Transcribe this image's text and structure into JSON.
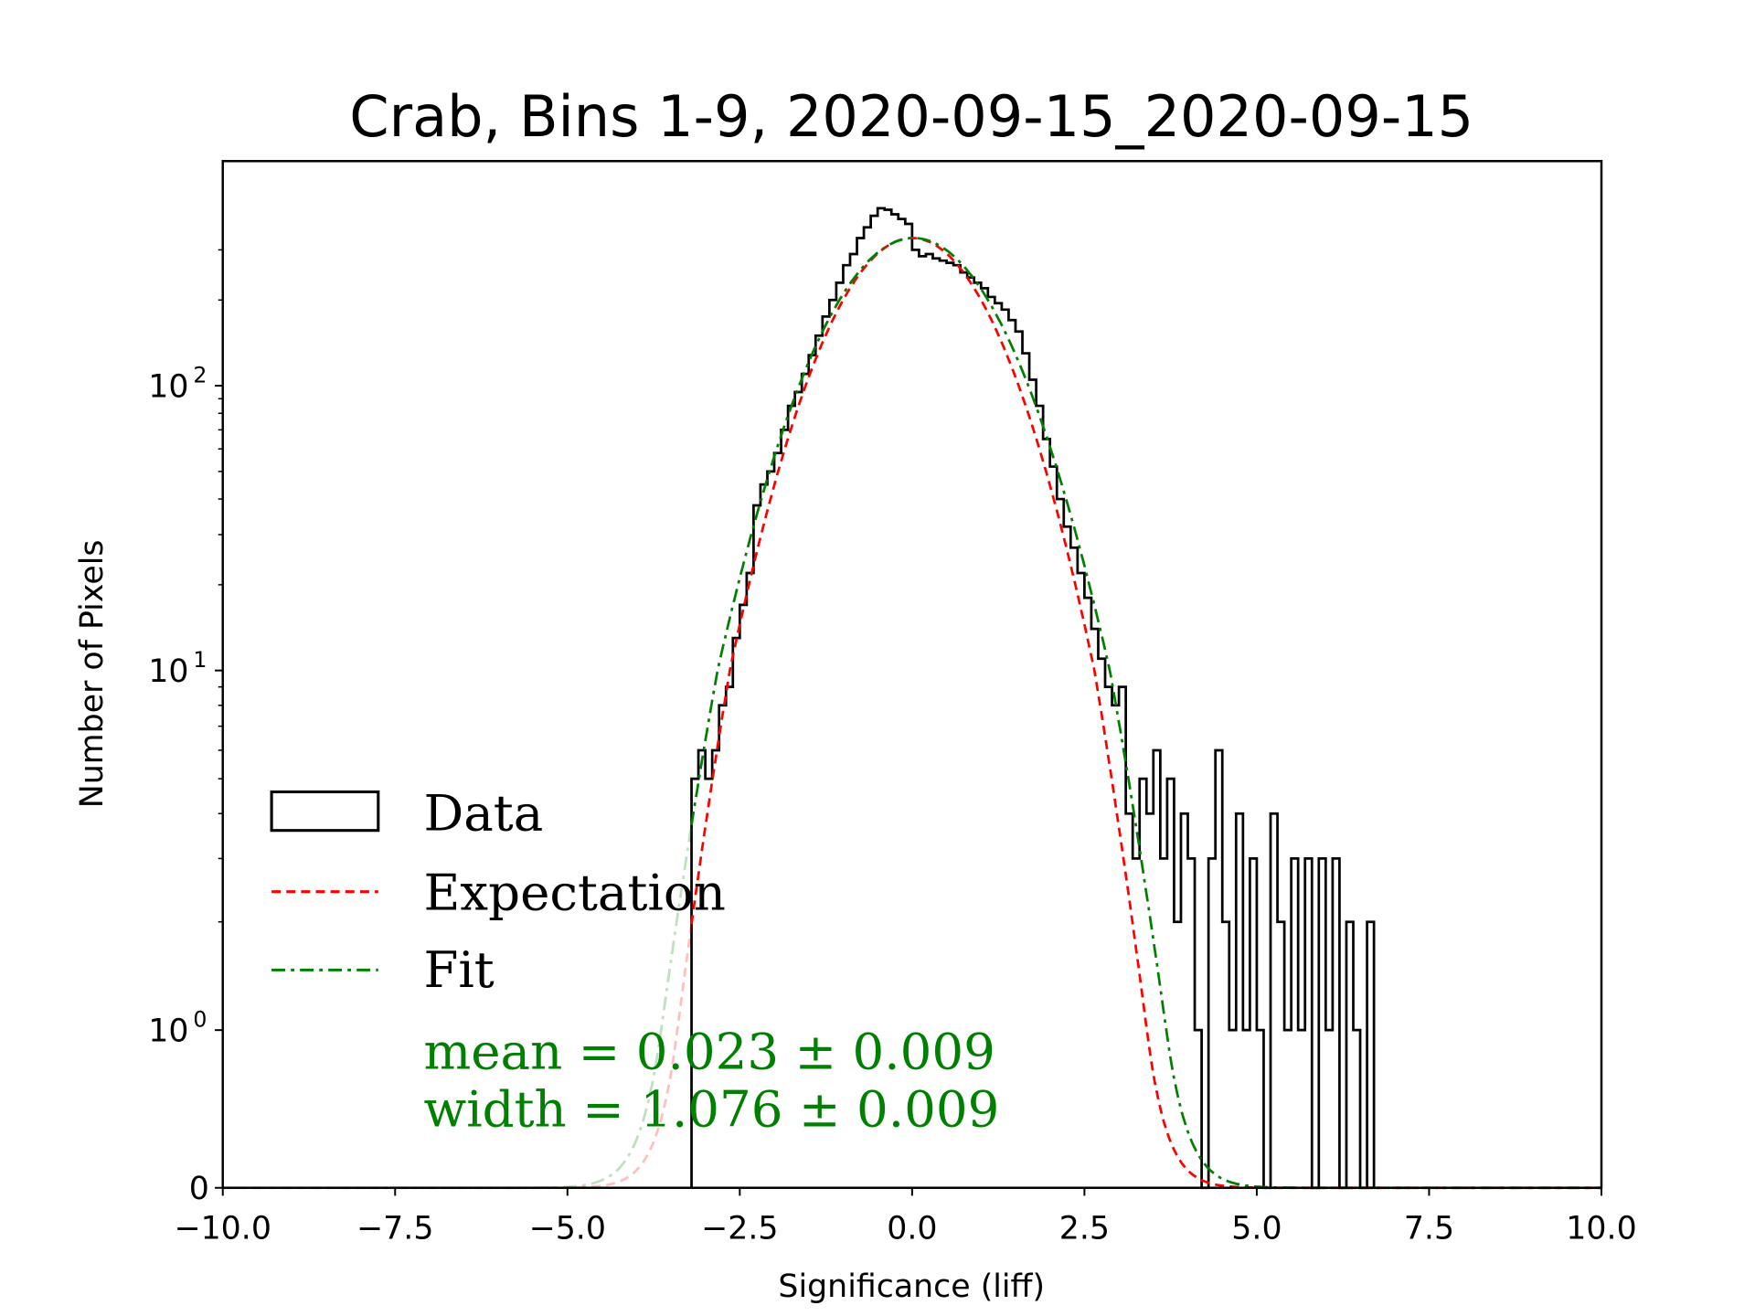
{
  "chart_data": {
    "type": "histogram",
    "title": "Crab, Bins 1-9, 2020-09-15_2020-09-15",
    "xlabel": "Significance (liff)",
    "ylabel": "Number of Pixels",
    "xlim": [
      -10,
      10
    ],
    "yscale": "symlog",
    "yticks": [
      {
        "value": 0,
        "label": "0",
        "sup": ""
      },
      {
        "value": 1,
        "label": "10",
        "sup": "0"
      },
      {
        "value": 10,
        "label": "10",
        "sup": "1"
      },
      {
        "value": 100,
        "label": "10",
        "sup": "2"
      }
    ],
    "xticks": [
      {
        "value": -10,
        "label": "−10.0"
      },
      {
        "value": -7.5,
        "label": "−7.5"
      },
      {
        "value": -5,
        "label": "−5.0"
      },
      {
        "value": -2.5,
        "label": "−2.5"
      },
      {
        "value": 0,
        "label": "0.0"
      },
      {
        "value": 2.5,
        "label": "2.5"
      },
      {
        "value": 5,
        "label": "5.0"
      },
      {
        "value": 7.5,
        "label": "7.5"
      },
      {
        "value": 10,
        "label": "10.0"
      }
    ],
    "histogram": {
      "bin_start": -3.2,
      "bin_width": 0.1,
      "counts": [
        5,
        6,
        5,
        6,
        8,
        9,
        13,
        17,
        22,
        38,
        45,
        50,
        58,
        70,
        85,
        95,
        110,
        128,
        150,
        175,
        200,
        230,
        265,
        290,
        330,
        360,
        395,
        420,
        415,
        400,
        385,
        370,
        300,
        285,
        290,
        280,
        275,
        270,
        265,
        250,
        240,
        230,
        220,
        205,
        195,
        185,
        170,
        155,
        130,
        105,
        85,
        65,
        52,
        40,
        32,
        27,
        22,
        18,
        14,
        11,
        9,
        8,
        9,
        4,
        3,
        5,
        4,
        6,
        3,
        5,
        2,
        4,
        3,
        1,
        0,
        3,
        6,
        2,
        1,
        4,
        1,
        3,
        1,
        0,
        4,
        2,
        1,
        3,
        1,
        3,
        0,
        3,
        1,
        3,
        0,
        2,
        1,
        0,
        2
      ]
    },
    "curves": [
      {
        "name": "Expectation",
        "mean": 0.0,
        "width": 1.0,
        "amplitude": 330,
        "color": "#ff0000",
        "style": "dashed"
      },
      {
        "name": "Fit",
        "mean": 0.023,
        "width": 1.076,
        "amplitude": 330,
        "color": "#008000",
        "style": "dashdot"
      }
    ],
    "legend": {
      "position": "lower-left",
      "entries": [
        "Data",
        "Expectation",
        "Fit"
      ]
    },
    "annotations": {
      "mean": "mean = 0.023 ± 0.009",
      "width": "width = 1.076 ± 0.009"
    }
  }
}
